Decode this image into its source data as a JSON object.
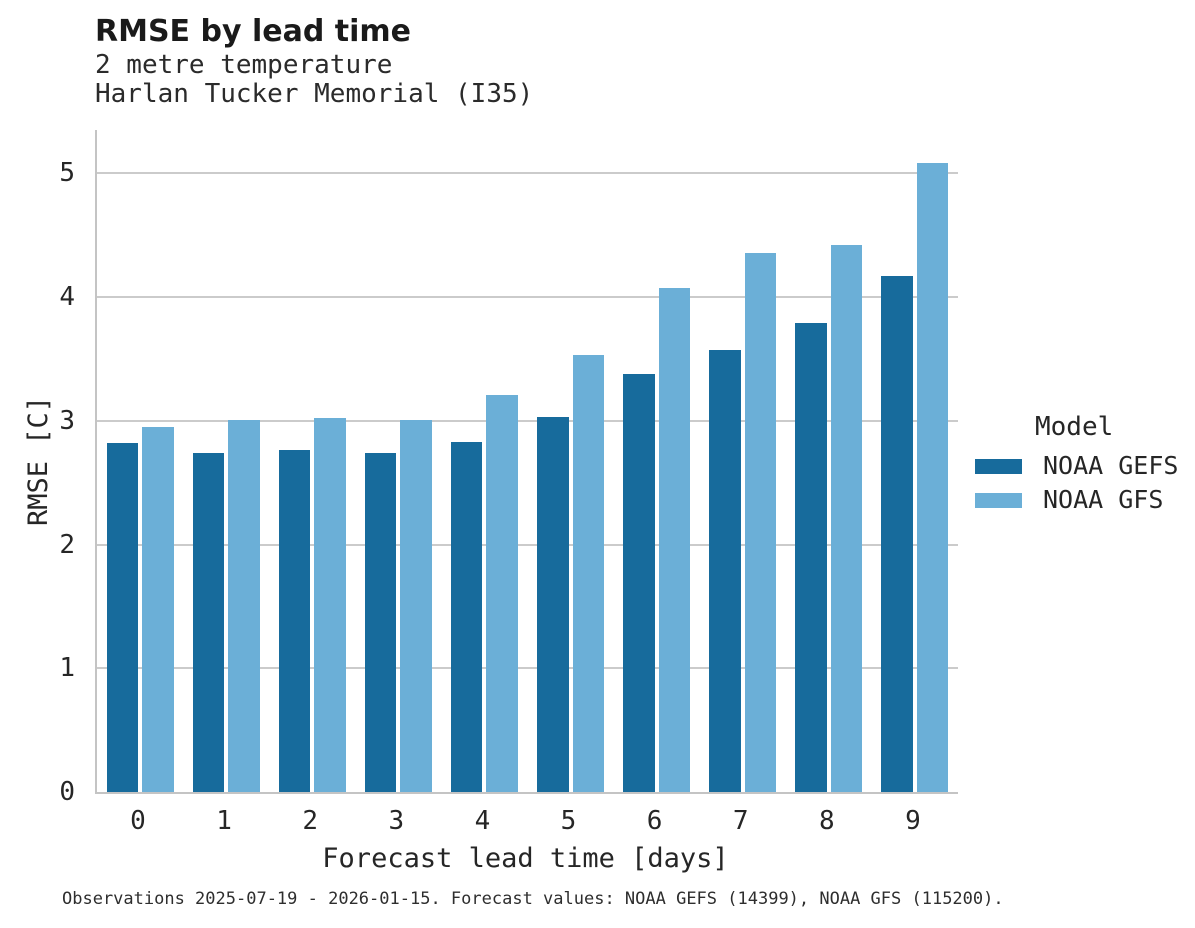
{
  "header": {
    "title": "RMSE by lead time",
    "subtitle_line1": "2 metre temperature",
    "subtitle_line2": "Harlan Tucker Memorial (I35)"
  },
  "chart_data": {
    "type": "bar",
    "title": "RMSE by lead time",
    "subtitle": [
      "2 metre temperature",
      "Harlan Tucker Memorial (I35)"
    ],
    "categories": [
      "0",
      "1",
      "2",
      "3",
      "4",
      "5",
      "6",
      "7",
      "8",
      "9"
    ],
    "series": [
      {
        "name": "NOAA GEFS",
        "color": "#176B9C",
        "values": [
          2.82,
          2.74,
          2.76,
          2.74,
          2.83,
          3.03,
          3.38,
          3.57,
          3.79,
          4.17
        ]
      },
      {
        "name": "NOAA GFS",
        "color": "#6BAFD7",
        "values": [
          2.95,
          3.01,
          3.02,
          3.01,
          3.21,
          3.53,
          4.07,
          4.36,
          4.42,
          5.08
        ]
      }
    ],
    "xlabel": "Forecast lead time [days]",
    "ylabel": "RMSE [C]",
    "ylim": [
      0,
      5.35
    ],
    "yticks": [
      0,
      1,
      2,
      3,
      4,
      5
    ],
    "grid": "horizontal",
    "legend_position": "right"
  },
  "legend": {
    "title": "Model",
    "entries": [
      "NOAA GEFS",
      "NOAA GFS"
    ]
  },
  "footer": {
    "note": "Observations 2025-07-19 - 2026-01-15. Forecast values: NOAA GEFS (14399), NOAA GFS (115200)."
  },
  "colors": {
    "gefs": "#176B9C",
    "gfs": "#6BAFD7",
    "gridline": "#CBCBCB",
    "spine": "#C4C4C4",
    "text": "#262626"
  }
}
